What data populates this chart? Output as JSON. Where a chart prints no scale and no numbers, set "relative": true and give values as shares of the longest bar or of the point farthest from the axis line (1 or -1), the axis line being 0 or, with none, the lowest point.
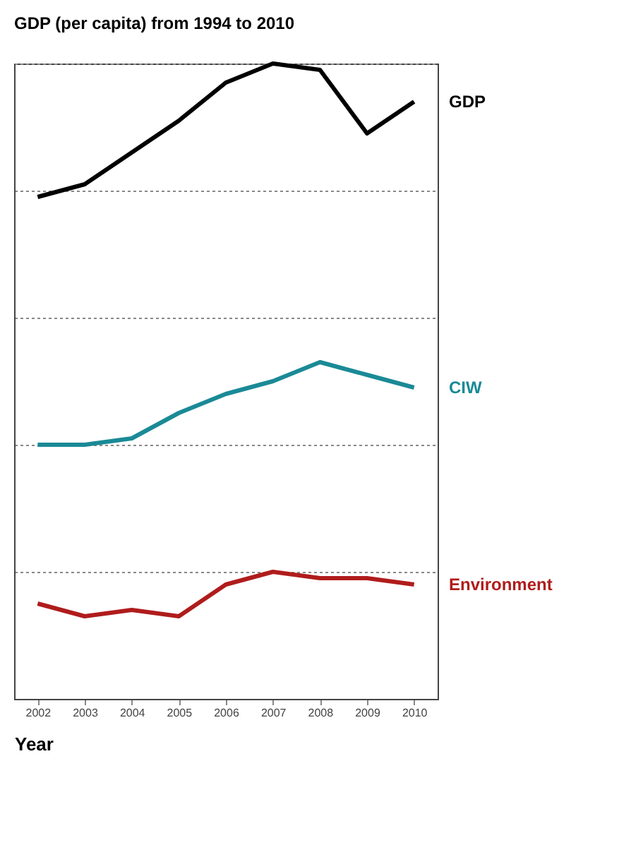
{
  "chart_data": {
    "type": "line",
    "title": "GDP (per capita) from 1994 to 2010",
    "xlabel": "Year",
    "relative": true,
    "grid": "y",
    "legend": false,
    "categories": [
      "2002",
      "2003",
      "2004",
      "2005",
      "2006",
      "2007",
      "2008",
      "2009",
      "2010"
    ],
    "series": [
      {
        "name": "GDP",
        "color": "#000000",
        "values": [
          0.79,
          0.81,
          0.86,
          0.91,
          0.97,
          1.0,
          0.99,
          0.89,
          0.94
        ]
      },
      {
        "name": "CIW",
        "color": "#1a8a96",
        "values": [
          0.4,
          0.4,
          0.41,
          0.45,
          0.48,
          0.5,
          0.53,
          0.51,
          0.49
        ]
      },
      {
        "name": "Environment",
        "color": "#b01c1c",
        "values": [
          0.15,
          0.13,
          0.14,
          0.13,
          0.18,
          0.2,
          0.19,
          0.19,
          0.18
        ]
      }
    ]
  }
}
